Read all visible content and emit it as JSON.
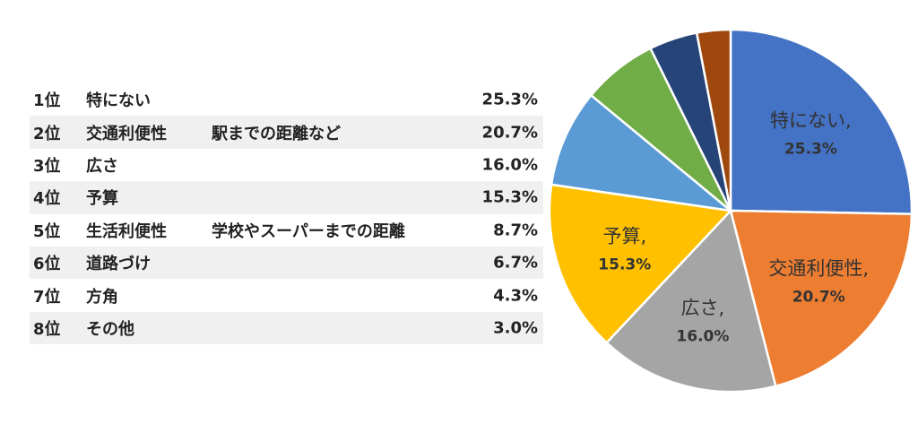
{
  "ranking": [
    {
      "rank": "1位",
      "name": "特にない",
      "detail": "",
      "value": "25.3%"
    },
    {
      "rank": "2位",
      "name": "交通利便性",
      "detail": "駅までの距離など",
      "value": "20.7%"
    },
    {
      "rank": "3位",
      "name": "広さ",
      "detail": "",
      "value": "16.0%"
    },
    {
      "rank": "4位",
      "name": "予算",
      "detail": "",
      "value": "15.3%"
    },
    {
      "rank": "5位",
      "name": "生活利便性",
      "detail": "学校やスーパーまでの距離",
      "value": "8.7%"
    },
    {
      "rank": "6位",
      "name": "道路づけ",
      "detail": "",
      "value": "6.7%"
    },
    {
      "rank": "7位",
      "name": "方角",
      "detail": "",
      "value": "4.3%"
    },
    {
      "rank": "8位",
      "name": "その他",
      "detail": "",
      "value": "3.0%"
    }
  ],
  "chart_data": {
    "type": "pie",
    "slices": [
      {
        "name": "特にない",
        "value": 25.3,
        "color": "#4472C4",
        "label": "特にない,",
        "value_label": "25.3%"
      },
      {
        "name": "交通利便性",
        "value": 20.7,
        "color": "#ED7D31",
        "label": "交通利便性,",
        "value_label": "20.7%"
      },
      {
        "name": "広さ",
        "value": 16.0,
        "color": "#A5A5A5",
        "label": "広さ,",
        "value_label": "16.0%"
      },
      {
        "name": "予算",
        "value": 15.3,
        "color": "#FFC000",
        "label": "予算,",
        "value_label": "15.3%"
      },
      {
        "name": "生活利便性",
        "value": 8.7,
        "color": "#5B9BD5",
        "label": "",
        "value_label": ""
      },
      {
        "name": "道路づけ",
        "value": 6.7,
        "color": "#70AD47",
        "label": "",
        "value_label": ""
      },
      {
        "name": "方角",
        "value": 4.3,
        "color": "#264478",
        "label": "",
        "value_label": ""
      },
      {
        "name": "その他",
        "value": 3.0,
        "color": "#9E480E",
        "label": "",
        "value_label": ""
      }
    ]
  }
}
